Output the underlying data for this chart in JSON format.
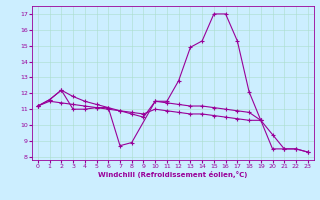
{
  "title": "",
  "xlabel": "Windchill (Refroidissement éolien,°C)",
  "ylabel": "",
  "bg_color": "#cceeff",
  "line_color": "#990099",
  "grid_color": "#aaddcc",
  "xlim": [
    -0.5,
    23.5
  ],
  "ylim": [
    7.8,
    17.5
  ],
  "xticks": [
    0,
    1,
    2,
    3,
    4,
    5,
    6,
    7,
    8,
    9,
    10,
    11,
    12,
    13,
    14,
    15,
    16,
    17,
    18,
    19,
    20,
    21,
    22,
    23
  ],
  "yticks": [
    8,
    9,
    10,
    11,
    12,
    13,
    14,
    15,
    16,
    17
  ],
  "series": [
    [
      11.2,
      11.6,
      12.2,
      11.0,
      11.0,
      11.1,
      11.1,
      8.7,
      8.9,
      null,
      11.5,
      11.5,
      12.8,
      14.9,
      15.3,
      17.0,
      17.0,
      15.3,
      12.1,
      10.3,
      null,
      null,
      null,
      null
    ],
    [
      11.2,
      11.6,
      12.2,
      11.8,
      11.5,
      11.3,
      11.1,
      10.9,
      10.7,
      10.5,
      11.5,
      11.4,
      11.3,
      11.2,
      11.2,
      11.1,
      11.0,
      10.9,
      10.8,
      10.3,
      8.5,
      8.5,
      8.5,
      8.3
    ],
    [
      11.2,
      11.5,
      11.4,
      11.3,
      11.2,
      11.1,
      11.0,
      10.9,
      10.8,
      10.7,
      11.0,
      10.9,
      10.8,
      10.7,
      10.7,
      10.6,
      10.5,
      10.4,
      10.3,
      10.3,
      9.4,
      8.5,
      8.5,
      8.3
    ]
  ],
  "tick_fontsize": 4.5,
  "xlabel_fontsize": 5.0,
  "spine_linewidth": 0.6,
  "grid_linewidth": 0.4,
  "line_linewidth": 0.8,
  "marker_size": 3.0,
  "marker_lw": 0.8
}
